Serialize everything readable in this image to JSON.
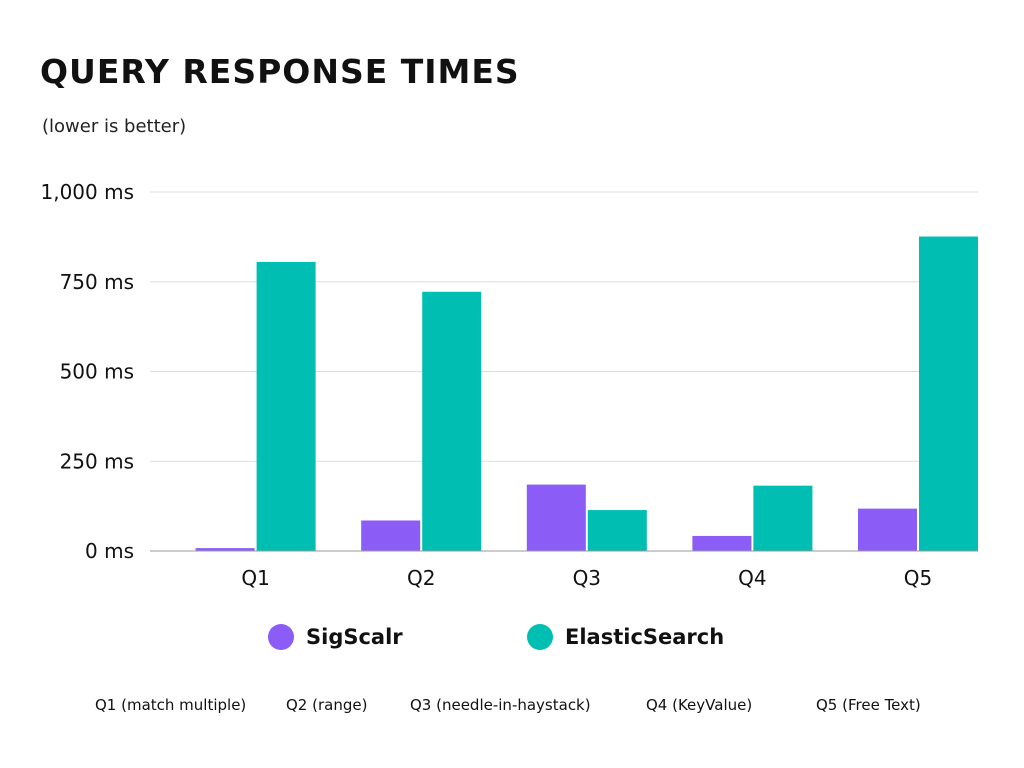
{
  "chart_data": {
    "type": "bar",
    "title": "QUERY RESPONSE TIMES",
    "subtitle": "(lower is better)",
    "categories": [
      "Q1",
      "Q2",
      "Q3",
      "Q4",
      "Q5"
    ],
    "series": [
      {
        "name": "SigScalr",
        "color": "#8b5cf6",
        "values": [
          8,
          85,
          185,
          42,
          118
        ]
      },
      {
        "name": "ElasticSearch",
        "color": "#00bfb2",
        "values": [
          805,
          722,
          114,
          182,
          876
        ]
      }
    ],
    "yticks": [
      "0 ms",
      "250 ms",
      "500 ms",
      "750 ms",
      "1,000 ms"
    ],
    "ylim": [
      0,
      1000
    ],
    "grid": true,
    "legend_position": "bottom"
  },
  "footnotes": [
    "Q1 (match multiple)",
    "Q2 (range)",
    "Q3 (needle-in-haystack)",
    "Q4 (KeyValue)",
    "Q5 (Free Text)"
  ]
}
